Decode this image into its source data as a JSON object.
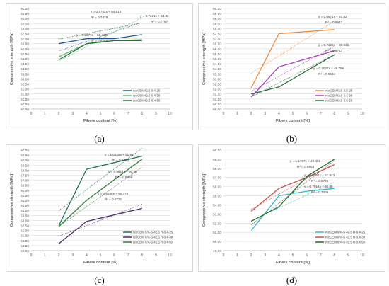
{
  "chart_data": [
    {
      "type": "line",
      "caption": "(a)",
      "xlabel": "Fibers content [%]",
      "ylabel": "Compressive strength [MPa]",
      "xlim": [
        0,
        10
      ],
      "ylim": [
        50.0,
        60.0
      ],
      "ystep": 0.5,
      "ydecimals": 2,
      "legend_position": "bottom-right",
      "series": [
        {
          "name": "recCEM42.5-0.4-25",
          "color": "#1f5c8b",
          "x": [
            2,
            4,
            6,
            8
          ],
          "values": [
            56.5,
            57.0,
            57.0,
            57.4
          ]
        },
        {
          "name": "recCEM42.5-0.4-38",
          "color": "#5fb86a",
          "x": [
            2,
            4,
            6,
            8
          ],
          "values": [
            55.2,
            56.5,
            56.8,
            56.9
          ]
        },
        {
          "name": "recCEM42.5-0.4-50",
          "color": "#2a6e3b",
          "x": [
            2,
            4,
            6,
            8
          ],
          "values": [
            54.9,
            56.5,
            56.8,
            56.8
          ]
        }
      ],
      "trendlines": [
        {
          "eq": "y = 0.4782x + 54.815",
          "r2": "R² = 0.7478",
          "color": "#1f5c8b",
          "slope": 0.4782,
          "intercept": 54.815
        },
        {
          "eq": "y = 0.7221x + 53.32",
          "r2": "R² = 0.7767",
          "color": "#5fb86a",
          "slope": 0.7221,
          "intercept": 53.32
        },
        {
          "eq": "y = 0.2677x + 56.428",
          "r2": "R² = 0.6856",
          "color": "#2a6e3b",
          "slope": 0.2677,
          "intercept": 56.428
        }
      ]
    },
    {
      "type": "line",
      "caption": "(b)",
      "xlabel": "Fibers content [%]",
      "ylabel": "Compressive strength [MPa]",
      "xlim": [
        0,
        10
      ],
      "ylim": [
        50.0,
        60.0
      ],
      "ystep": 0.5,
      "ydecimals": 2,
      "legend_position": "bottom-right",
      "series": [
        {
          "name": "recCEM42.5-0.5-25",
          "color": "#ed8b3a",
          "x": [
            2,
            4,
            8
          ],
          "values": [
            52.1,
            57.5,
            57.9
          ]
        },
        {
          "name": "recCEM42.5-0.5-38",
          "color": "#a23bb8",
          "x": [
            2,
            4,
            8
          ],
          "values": [
            51.2,
            54.2,
            55.8
          ]
        },
        {
          "name": "recCEM42.5-0.5-50",
          "color": "#2c6e3f",
          "x": [
            2,
            4,
            8
          ],
          "values": [
            51.5,
            52.2,
            55.4
          ]
        }
      ],
      "trendlines": [
        {
          "eq": "y = 0.8671x + 51.82",
          "r2": "R² = 0.6547",
          "color": "#ed8b3a",
          "slope": 0.8671,
          "intercept": 51.82
        },
        {
          "eq": "y = 0.7496x + 50.245",
          "r2": "R² = 0.8717",
          "color": "#a23bb8",
          "slope": 0.7496,
          "intercept": 50.245
        },
        {
          "eq": "y = 0.7027x + 49.796",
          "r2": "R² = 0.9634",
          "color": "#2c6e3f",
          "slope": 0.7027,
          "intercept": 49.796
        }
      ]
    },
    {
      "type": "line",
      "caption": "(c)",
      "xlabel": "Fibers content [%]",
      "ylabel": "Compressive strength [MPa]",
      "xlim": [
        0,
        10
      ],
      "ylim": [
        50.0,
        60.0
      ],
      "ystep": 0.5,
      "ydecimals": 2,
      "legend_position": "bottom-right",
      "series": [
        {
          "name": "recCEM II/A-S 42.5 R-0.4-25",
          "color": "#1f6e5c",
          "x": [
            2,
            4,
            8
          ],
          "values": [
            52.5,
            58.1,
            59.4
          ]
        },
        {
          "name": "recCEM II/A-S 42.5 R-0.4-38",
          "color": "#4b2a63",
          "x": [
            2,
            4,
            8
          ],
          "values": [
            50.7,
            52.9,
            54.2
          ]
        },
        {
          "name": "recCEM II/A-S 42.5 R-0.4-50",
          "color": "#2e7a3a",
          "x": [
            2,
            4,
            8
          ],
          "values": [
            52.4,
            55.0,
            59.1
          ]
        }
      ],
      "trendlines": [
        {
          "eq": "y = 1.0329x + 51.93",
          "r2": "R² = 0.8733",
          "color": "#1f6e5c",
          "slope": 1.0329,
          "intercept": 51.93
        },
        {
          "eq": "y = 0.9814x + 50.45",
          "r2": "R² = 0.9999",
          "color": "#2e7a3a",
          "slope": 0.9814,
          "intercept": 50.45
        },
        {
          "eq": "y = 0.5286x + 50.378",
          "r2": "R² = 0.8721",
          "color": "#4b2a63",
          "slope": 0.5286,
          "intercept": 50.378
        }
      ]
    },
    {
      "type": "line",
      "caption": "(d)",
      "xlabel": "Fibers content [%]",
      "ylabel": "Compressive strength [MPa]",
      "xlim": [
        0,
        10
      ],
      "ylim": [
        49.0,
        60.0
      ],
      "ystep": 1.0,
      "ydecimals": 2,
      "legend_position": "bottom-right",
      "series": [
        {
          "name": "recCEM II/A-S 42.5 R-0.4-25",
          "color": "#33b5c8",
          "x": [
            2,
            4,
            6,
            8
          ],
          "values": [
            51.2,
            55.0,
            55.5,
            55.8
          ]
        },
        {
          "name": "recCEM II/A-S 42.5 R-0.4-38",
          "color": "#c0504d",
          "x": [
            2,
            4,
            6,
            8
          ],
          "values": [
            53.3,
            55.8,
            57.0,
            58.4
          ]
        },
        {
          "name": "recCEM II/A-S 42.5 R-0.4-50",
          "color": "#2a6a2a",
          "x": [
            2,
            4,
            6,
            8
          ],
          "values": [
            52.2,
            53.8,
            57.1,
            59.0
          ]
        }
      ],
      "trendlines": [
        {
          "eq": "y = 1.1767x + 49.465",
          "r2": "R² = 0.9853",
          "color": "#2a6a2a",
          "slope": 1.1767,
          "intercept": 49.465
        },
        {
          "eq": "y = 0.8361x + 51.843",
          "r2": "R² = 0.9706",
          "color": "#c0504d",
          "slope": 0.8361,
          "intercept": 51.843
        },
        {
          "eq": "y = 0.7014x + 50.88",
          "r2": "R² = 0.7309",
          "color": "#33b5c8",
          "slope": 0.7014,
          "intercept": 50.88
        }
      ]
    }
  ]
}
